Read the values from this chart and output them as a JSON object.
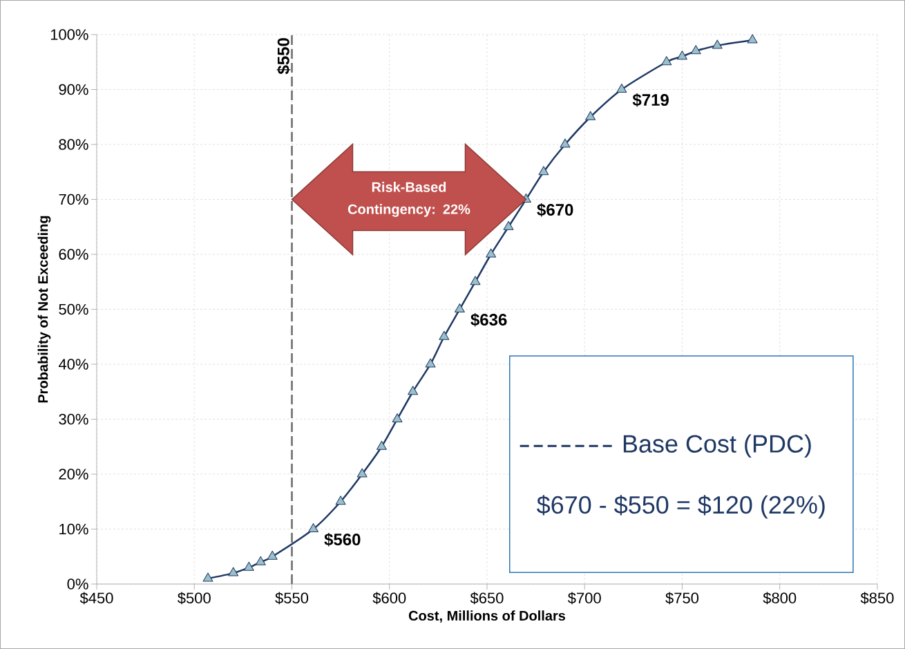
{
  "chart_data": {
    "type": "line",
    "xlabel": "Cost, Millions of Dollars",
    "ylabel": "Probability of Not Exceeding",
    "x": [
      507,
      520,
      528,
      534,
      540,
      561,
      575,
      586,
      596,
      604,
      612,
      621,
      628,
      636,
      644,
      652,
      661,
      670,
      679,
      690,
      703,
      719,
      742,
      750,
      757,
      768,
      786
    ],
    "series": [
      {
        "color": "#1f3864",
        "values": [
          1,
          2,
          3,
          4,
          5,
          10,
          15,
          20,
          25,
          30,
          35,
          40,
          45,
          50,
          55,
          60,
          65,
          70,
          75,
          80,
          85,
          90,
          95,
          96,
          97,
          98,
          99
        ]
      }
    ],
    "marker": "triangle",
    "line_style": "solid",
    "grid": true,
    "xlim": [
      450,
      850
    ],
    "xticks": [
      {
        "value": 450,
        "label": "$450"
      },
      {
        "value": 500,
        "label": "$500"
      },
      {
        "value": 550,
        "label": "$550"
      },
      {
        "value": 600,
        "label": "$600"
      },
      {
        "value": 650,
        "label": "$650"
      },
      {
        "value": 700,
        "label": "$700"
      },
      {
        "value": 750,
        "label": "$750"
      },
      {
        "value": 800,
        "label": "$800"
      },
      {
        "value": 850,
        "label": "$850"
      }
    ],
    "ylim": [
      0,
      100
    ],
    "yticks": [
      {
        "value": 0,
        "label": "0%"
      },
      {
        "value": 10,
        "label": "10%"
      },
      {
        "value": 20,
        "label": "20%"
      },
      {
        "value": 30,
        "label": "30%"
      },
      {
        "value": 40,
        "label": "40%"
      },
      {
        "value": 50,
        "label": "50%"
      },
      {
        "value": 60,
        "label": "60%"
      },
      {
        "value": 70,
        "label": "70%"
      },
      {
        "value": 80,
        "label": "80%"
      },
      {
        "value": 90,
        "label": "90%"
      },
      {
        "value": 100,
        "label": "100%"
      }
    ],
    "ref_lines": [
      {
        "axis": "x",
        "value": 550,
        "label": "$550",
        "color": "#808080",
        "line_style": "dashed"
      }
    ],
    "annotations": [
      {
        "text": "$560",
        "x": 561,
        "y": 10
      },
      {
        "text": "$636",
        "x": 636,
        "y": 50
      },
      {
        "text": "$670",
        "x": 670,
        "y": 70
      },
      {
        "text": "$719",
        "x": 719,
        "y": 90
      },
      "Risk-Based Contingency: 22%",
      "Base Cost (PDC)",
      "$670 - $550 = $120 (22%)"
    ]
  }
}
